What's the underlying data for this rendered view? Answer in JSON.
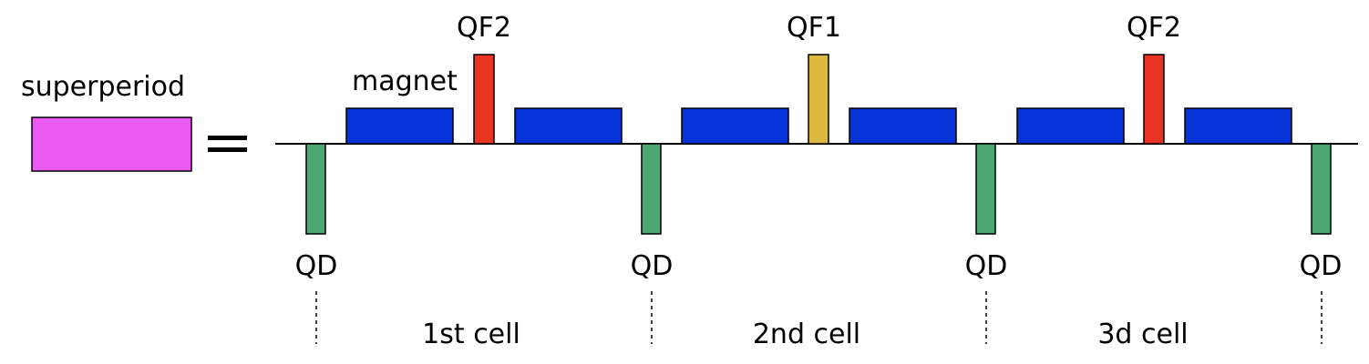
{
  "superperiod": {
    "label": "superperiod",
    "color": "#e85af0",
    "equals": "="
  },
  "colors": {
    "magnet": "#0633d8",
    "qf2": "#ea3423",
    "qf1": "#dcb840",
    "qd": "#4ca870",
    "outline": "#000000",
    "axis": "#000000"
  },
  "labels": {
    "magnet": "magnet",
    "qf2_left": "QF2",
    "qf1": "QF1",
    "qf2_right": "QF2",
    "qd": [
      "QD",
      "QD",
      "QD",
      "QD"
    ]
  },
  "cells": [
    "1st cell",
    "2nd cell",
    "3d cell"
  ]
}
